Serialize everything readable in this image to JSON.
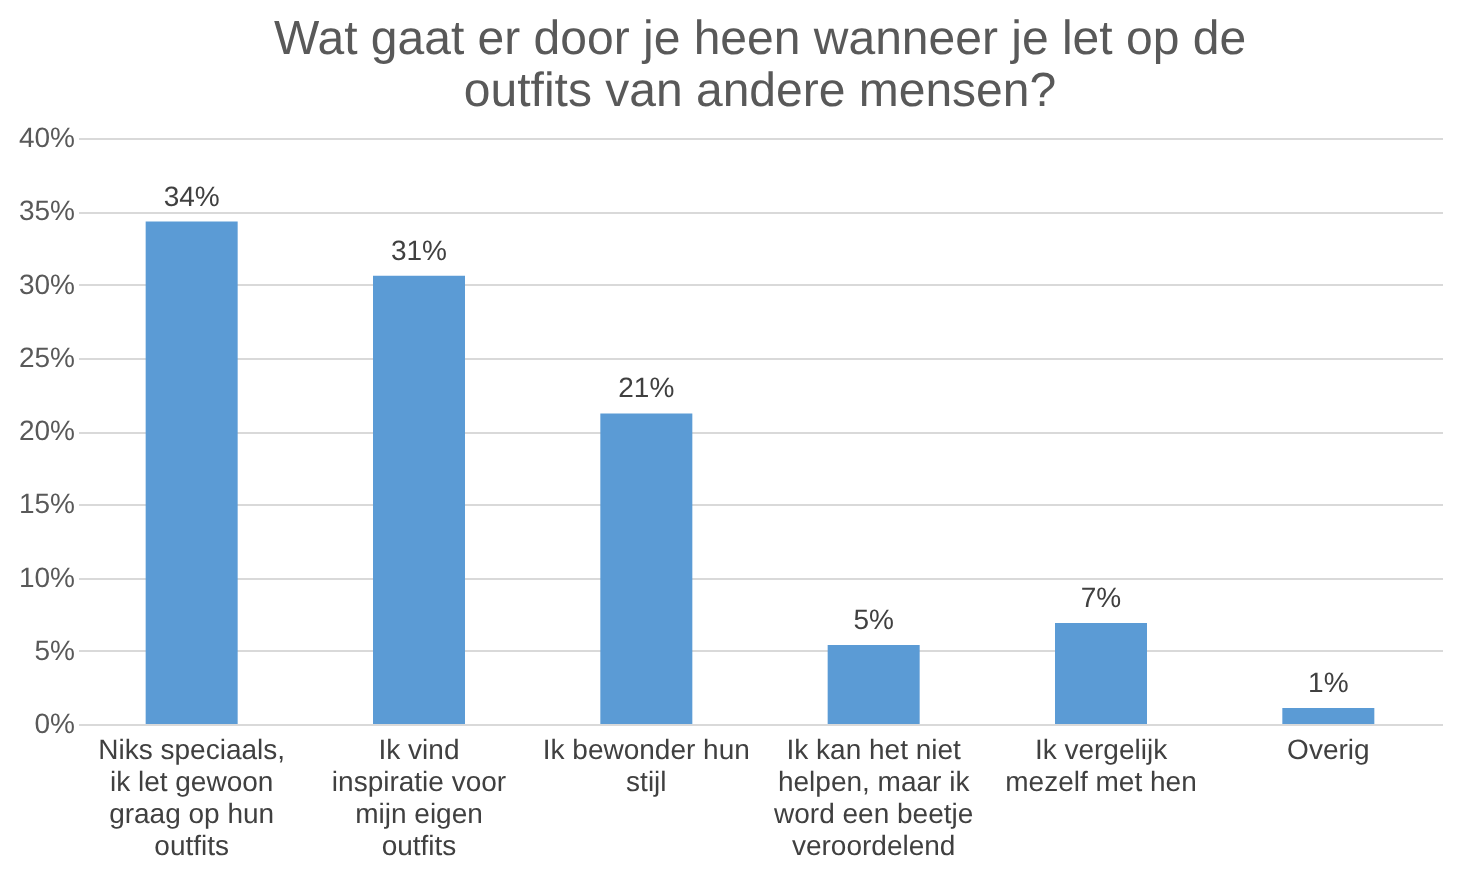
{
  "chart_data": {
    "type": "bar",
    "title": "Wat gaat er door je heen wanneer je let op de outfits van andere mensen?",
    "categories": [
      "Niks speciaals, ik let gewoon graag op hun outfits",
      "Ik vind inspiratie voor mijn eigen outfits",
      "Ik bewonder hun stijl",
      "Ik kan het niet helpen, maar ik word een beetje veroordelend",
      "Ik vergelijk mezelf met hen",
      "Overig"
    ],
    "values": [
      34.3,
      30.6,
      21.2,
      5.4,
      6.9,
      1.1
    ],
    "value_labels": [
      "34%",
      "31%",
      "21%",
      "5%",
      "7%",
      "1%"
    ],
    "color": "#5b9bd5",
    "ylim": [
      0,
      40
    ],
    "yticks": [
      {
        "value": 0,
        "label": "0%"
      },
      {
        "value": 5,
        "label": "5%"
      },
      {
        "value": 10,
        "label": "10%"
      },
      {
        "value": 15,
        "label": "15%"
      },
      {
        "value": 20,
        "label": "20%"
      },
      {
        "value": 25,
        "label": "25%"
      },
      {
        "value": 30,
        "label": "30%"
      },
      {
        "value": 35,
        "label": "35%"
      },
      {
        "value": 40,
        "label": "40%"
      }
    ],
    "grid": "y"
  }
}
